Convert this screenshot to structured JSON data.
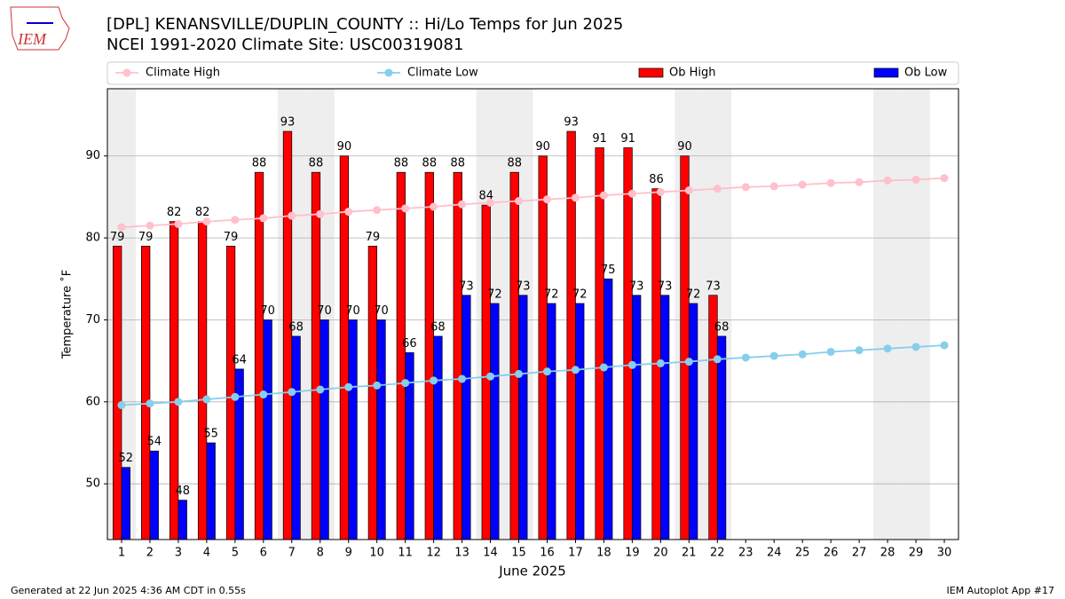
{
  "logo_text": "IEM",
  "chart_data": {
    "type": "bar",
    "title": "[DPL] KENANSVILLE/DUPLIN_COUNTY :: Hi/Lo Temps for Jun 2025",
    "subtitle": "NCEI 1991-2020 Climate Site: USC00319081",
    "y_label": "Temperature ˚F",
    "x_label": "June 2025",
    "x": [
      1,
      2,
      3,
      4,
      5,
      6,
      7,
      8,
      9,
      10,
      11,
      12,
      13,
      14,
      15,
      16,
      17,
      18,
      19,
      20,
      21,
      22,
      23,
      24,
      25,
      26,
      27,
      28,
      29,
      30
    ],
    "xlim": [
      0.5,
      30.5
    ],
    "xticks": [
      1,
      2,
      3,
      4,
      5,
      6,
      7,
      8,
      9,
      10,
      11,
      12,
      13,
      14,
      15,
      16,
      17,
      18,
      19,
      20,
      21,
      22,
      23,
      24,
      25,
      26,
      27,
      28,
      29,
      30
    ],
    "ylim": [
      43.2,
      98.2
    ],
    "yticks": [
      50,
      60,
      70,
      80,
      90
    ],
    "grid": true,
    "weekend_days": [
      1,
      7,
      8,
      14,
      15,
      21,
      22,
      28,
      29
    ],
    "series": [
      {
        "name": "Climate High",
        "kind": "line",
        "color": "#ffc0cb",
        "values": [
          81.3,
          81.5,
          81.7,
          82.0,
          82.2,
          82.4,
          82.7,
          82.9,
          83.2,
          83.4,
          83.6,
          83.8,
          84.1,
          84.3,
          84.5,
          84.7,
          84.9,
          85.2,
          85.4,
          85.6,
          85.8,
          86.0,
          86.2,
          86.3,
          86.5,
          86.7,
          86.8,
          87.0,
          87.1,
          87.3
        ]
      },
      {
        "name": "Climate Low",
        "kind": "line",
        "color": "#87ceeb",
        "values": [
          59.6,
          59.8,
          60.0,
          60.3,
          60.6,
          60.9,
          61.2,
          61.5,
          61.8,
          62.0,
          62.3,
          62.6,
          62.8,
          63.1,
          63.4,
          63.7,
          63.9,
          64.2,
          64.5,
          64.7,
          64.9,
          65.2,
          65.4,
          65.6,
          65.8,
          66.1,
          66.3,
          66.5,
          66.7,
          66.9
        ]
      },
      {
        "name": "Ob High",
        "kind": "bar",
        "color": "#ff0000",
        "values": [
          79,
          79,
          82,
          82,
          79,
          88,
          93,
          88,
          90,
          79,
          88,
          88,
          88,
          84,
          88,
          90,
          93,
          91,
          91,
          86,
          90,
          73,
          null,
          null,
          null,
          null,
          null,
          null,
          null,
          null
        ]
      },
      {
        "name": "Ob Low",
        "kind": "bar",
        "color": "#0000ff",
        "values": [
          52,
          54,
          48,
          55,
          64,
          70,
          68,
          70,
          70,
          70,
          66,
          68,
          73,
          72,
          73,
          72,
          72,
          75,
          73,
          73,
          72,
          68,
          null,
          null,
          null,
          null,
          null,
          null,
          null,
          null
        ]
      }
    ],
    "footer_left": "Generated at 22 Jun 2025 4:36 AM CDT in 0.55s",
    "footer_right": "IEM Autoplot App #17"
  }
}
